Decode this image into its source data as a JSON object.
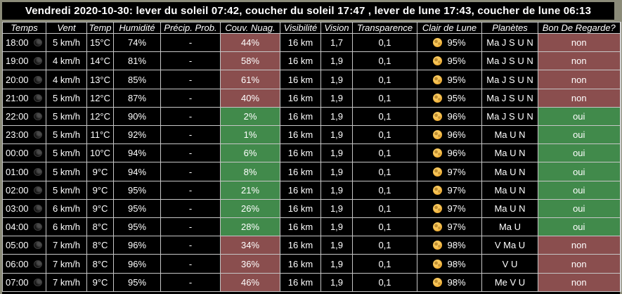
{
  "title": "Vendredi 2020-10-30: lever du soleil 07:42, coucher du soleil 17:47 , lever de lune 17:43, coucher de lune 06:13",
  "columns": [
    "Temps",
    "Vent",
    "Temp",
    "Humidité",
    "Précip. Prob.",
    "Couv. Nuag.",
    "Visibilité",
    "Vision",
    "Transparence",
    "Clair de Lune",
    "Planètes",
    "Bon De Regarde?"
  ],
  "colors": {
    "background": "#8b8b79",
    "good": "#418a4b",
    "bad": "#8a4e4e",
    "moon": "#f0ad33",
    "table_bg": "#000000",
    "text": "#ffffff"
  },
  "icons": {
    "time_icon": "moon-phase-icon",
    "moonlight_icon": "full-moon-icon"
  },
  "rows": [
    {
      "time": "18:00",
      "wind": "5 km/h",
      "temp": "15°C",
      "humidity": "74%",
      "precip": "-",
      "cloud": "44%",
      "cloud_status": "bad",
      "visibility": "16 km",
      "seeing": "1,7",
      "transparency": "0,1",
      "moonlight": "95%",
      "planets": "Ma J S U N",
      "good": "non",
      "good_status": "bad"
    },
    {
      "time": "19:00",
      "wind": "4 km/h",
      "temp": "14°C",
      "humidity": "81%",
      "precip": "-",
      "cloud": "58%",
      "cloud_status": "bad",
      "visibility": "16 km",
      "seeing": "1,9",
      "transparency": "0,1",
      "moonlight": "95%",
      "planets": "Ma J S U N",
      "good": "non",
      "good_status": "bad"
    },
    {
      "time": "20:00",
      "wind": "4 km/h",
      "temp": "13°C",
      "humidity": "85%",
      "precip": "-",
      "cloud": "61%",
      "cloud_status": "bad",
      "visibility": "16 km",
      "seeing": "1,9",
      "transparency": "0,1",
      "moonlight": "95%",
      "planets": "Ma J S U N",
      "good": "non",
      "good_status": "bad"
    },
    {
      "time": "21:00",
      "wind": "5 km/h",
      "temp": "12°C",
      "humidity": "87%",
      "precip": "-",
      "cloud": "40%",
      "cloud_status": "bad",
      "visibility": "16 km",
      "seeing": "1,9",
      "transparency": "0,1",
      "moonlight": "95%",
      "planets": "Ma J S U N",
      "good": "non",
      "good_status": "bad"
    },
    {
      "time": "22:00",
      "wind": "5 km/h",
      "temp": "12°C",
      "humidity": "90%",
      "precip": "-",
      "cloud": "2%",
      "cloud_status": "good",
      "visibility": "16 km",
      "seeing": "1,9",
      "transparency": "0,1",
      "moonlight": "96%",
      "planets": "Ma J S U N",
      "good": "oui",
      "good_status": "good"
    },
    {
      "time": "23:00",
      "wind": "5 km/h",
      "temp": "11°C",
      "humidity": "92%",
      "precip": "-",
      "cloud": "1%",
      "cloud_status": "good",
      "visibility": "16 km",
      "seeing": "1,9",
      "transparency": "0,1",
      "moonlight": "96%",
      "planets": "Ma U N",
      "good": "oui",
      "good_status": "good"
    },
    {
      "time": "00:00",
      "wind": "5 km/h",
      "temp": "10°C",
      "humidity": "94%",
      "precip": "-",
      "cloud": "6%",
      "cloud_status": "good",
      "visibility": "16 km",
      "seeing": "1,9",
      "transparency": "0,1",
      "moonlight": "96%",
      "planets": "Ma U N",
      "good": "oui",
      "good_status": "good"
    },
    {
      "time": "01:00",
      "wind": "5 km/h",
      "temp": "9°C",
      "humidity": "94%",
      "precip": "-",
      "cloud": "8%",
      "cloud_status": "good",
      "visibility": "16 km",
      "seeing": "1,9",
      "transparency": "0,1",
      "moonlight": "97%",
      "planets": "Ma U N",
      "good": "oui",
      "good_status": "good"
    },
    {
      "time": "02:00",
      "wind": "5 km/h",
      "temp": "9°C",
      "humidity": "95%",
      "precip": "-",
      "cloud": "21%",
      "cloud_status": "good",
      "visibility": "16 km",
      "seeing": "1,9",
      "transparency": "0,1",
      "moonlight": "97%",
      "planets": "Ma U N",
      "good": "oui",
      "good_status": "good"
    },
    {
      "time": "03:00",
      "wind": "6 km/h",
      "temp": "9°C",
      "humidity": "95%",
      "precip": "-",
      "cloud": "26%",
      "cloud_status": "good",
      "visibility": "16 km",
      "seeing": "1,9",
      "transparency": "0,1",
      "moonlight": "97%",
      "planets": "Ma U N",
      "good": "oui",
      "good_status": "good"
    },
    {
      "time": "04:00",
      "wind": "6 km/h",
      "temp": "8°C",
      "humidity": "95%",
      "precip": "-",
      "cloud": "28%",
      "cloud_status": "good",
      "visibility": "16 km",
      "seeing": "1,9",
      "transparency": "0,1",
      "moonlight": "97%",
      "planets": "Ma U",
      "good": "oui",
      "good_status": "good"
    },
    {
      "time": "05:00",
      "wind": "7 km/h",
      "temp": "8°C",
      "humidity": "96%",
      "precip": "-",
      "cloud": "34%",
      "cloud_status": "bad",
      "visibility": "16 km",
      "seeing": "1,9",
      "transparency": "0,1",
      "moonlight": "98%",
      "planets": "V Ma U",
      "good": "non",
      "good_status": "bad"
    },
    {
      "time": "06:00",
      "wind": "7 km/h",
      "temp": "8°C",
      "humidity": "96%",
      "precip": "-",
      "cloud": "36%",
      "cloud_status": "bad",
      "visibility": "16 km",
      "seeing": "1,9",
      "transparency": "0,1",
      "moonlight": "98%",
      "planets": "V U",
      "good": "non",
      "good_status": "bad"
    },
    {
      "time": "07:00",
      "wind": "7 km/h",
      "temp": "9°C",
      "humidity": "95%",
      "precip": "-",
      "cloud": "46%",
      "cloud_status": "bad",
      "visibility": "16 km",
      "seeing": "1,9",
      "transparency": "0,1",
      "moonlight": "98%",
      "planets": "Me V U",
      "good": "non",
      "good_status": "bad"
    }
  ]
}
